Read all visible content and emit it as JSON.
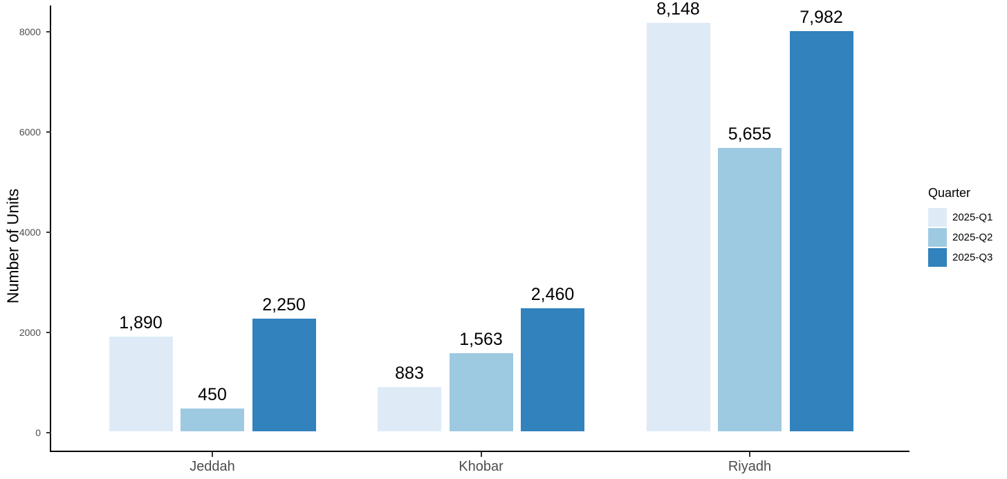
{
  "chart_data": {
    "type": "bar",
    "title": "",
    "ylabel": "Number of Units",
    "xlabel": "",
    "legend_title": "Quarter",
    "legend_position": "right",
    "grid": false,
    "ylim": [
      0,
      8000
    ],
    "yticks": [
      0,
      2000,
      4000,
      6000,
      8000
    ],
    "ytick_labels": [
      "0",
      "2000",
      "4000",
      "6000",
      "8000"
    ],
    "categories": [
      "Jeddah",
      "Khobar",
      "Riyadh"
    ],
    "series": [
      {
        "name": "2025-Q1",
        "color": "#DEEBF7",
        "values": [
          1890,
          883,
          8148
        ],
        "labels": [
          "1,890",
          "883",
          "8,148"
        ]
      },
      {
        "name": "2025-Q2",
        "color": "#9ECAE1",
        "values": [
          450,
          1563,
          5655
        ],
        "labels": [
          "450",
          "1,563",
          "5,655"
        ]
      },
      {
        "name": "2025-Q3",
        "color": "#3182BD",
        "values": [
          2250,
          2460,
          7982
        ],
        "labels": [
          "2,250",
          "2,460",
          "7,982"
        ]
      }
    ]
  }
}
